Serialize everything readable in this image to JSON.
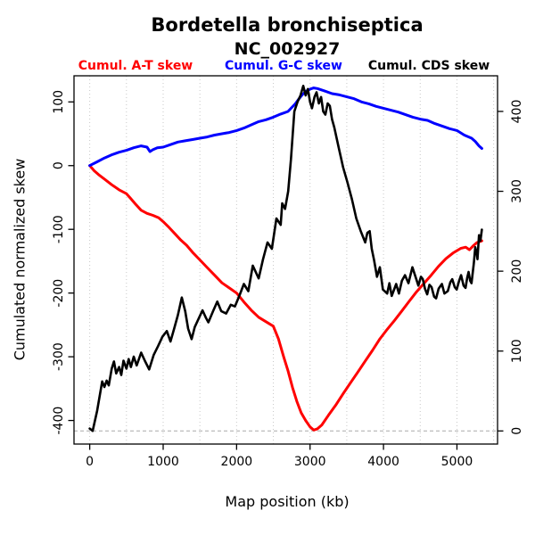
{
  "figure": {
    "title": "Bordetella bronchiseptica",
    "subtitle": "NC_002927",
    "background": "#ffffff",
    "axis_color": "#000000",
    "grid_color": "#c8c8c8",
    "refline_color": "#b4b4b4"
  },
  "legend": {
    "items": [
      {
        "label": "Cumul. A-T skew",
        "color": "#ff0000"
      },
      {
        "label": "Cumul. G-C skew",
        "color": "#0000ff"
      },
      {
        "label": "Cumul. CDS skew",
        "color": "#000000"
      }
    ]
  },
  "chart_data": {
    "type": "line",
    "title": "Bordetella bronchiseptica",
    "subtitle": "NC_002927",
    "xlabel": "Map position (kb)",
    "ylabel_left": "Cumulated normalized skew",
    "grid": true,
    "x_axis": {
      "domain": [
        -214,
        5553
      ],
      "ticks": [
        0,
        1000,
        2000,
        3000,
        4000,
        5000
      ],
      "gridlines": [
        0,
        500,
        1000,
        1500,
        2000,
        2500,
        3000,
        3500,
        4000,
        4500,
        5000,
        5500
      ],
      "grid_style": "dotted"
    },
    "y_left": {
      "domain": [
        -437,
        141
      ],
      "ticks": [
        -400,
        -300,
        -200,
        -100,
        0,
        100
      ]
    },
    "y_right": {
      "domain": [
        -16.4,
        444.6
      ],
      "ticks": [
        0,
        100,
        200,
        300,
        400
      ],
      "zero_refline": true,
      "refline_style": "dashed"
    },
    "series": [
      {
        "name": "Cumul. A-T skew",
        "axis": "left",
        "color": "#ff0000",
        "width": 3,
        "points": [
          [
            0,
            0
          ],
          [
            60,
            -8
          ],
          [
            120,
            -14
          ],
          [
            200,
            -21
          ],
          [
            300,
            -30
          ],
          [
            400,
            -38
          ],
          [
            500,
            -44
          ],
          [
            560,
            -52
          ],
          [
            620,
            -60
          ],
          [
            700,
            -70
          ],
          [
            780,
            -75
          ],
          [
            860,
            -78
          ],
          [
            940,
            -82
          ],
          [
            1000,
            -88
          ],
          [
            1080,
            -97
          ],
          [
            1160,
            -107
          ],
          [
            1240,
            -117
          ],
          [
            1320,
            -125
          ],
          [
            1400,
            -136
          ],
          [
            1500,
            -148
          ],
          [
            1600,
            -160
          ],
          [
            1700,
            -172
          ],
          [
            1800,
            -184
          ],
          [
            1900,
            -192
          ],
          [
            2000,
            -200
          ],
          [
            2100,
            -214
          ],
          [
            2200,
            -227
          ],
          [
            2300,
            -238
          ],
          [
            2400,
            -245
          ],
          [
            2500,
            -252
          ],
          [
            2570,
            -272
          ],
          [
            2640,
            -300
          ],
          [
            2700,
            -322
          ],
          [
            2760,
            -348
          ],
          [
            2820,
            -370
          ],
          [
            2880,
            -388
          ],
          [
            2940,
            -400
          ],
          [
            3000,
            -410
          ],
          [
            3050,
            -415
          ],
          [
            3100,
            -413
          ],
          [
            3160,
            -407
          ],
          [
            3250,
            -392
          ],
          [
            3350,
            -376
          ],
          [
            3450,
            -358
          ],
          [
            3550,
            -341
          ],
          [
            3650,
            -324
          ],
          [
            3750,
            -307
          ],
          [
            3850,
            -290
          ],
          [
            3950,
            -272
          ],
          [
            4050,
            -257
          ],
          [
            4150,
            -243
          ],
          [
            4250,
            -228
          ],
          [
            4350,
            -213
          ],
          [
            4450,
            -198
          ],
          [
            4550,
            -185
          ],
          [
            4650,
            -172
          ],
          [
            4750,
            -158
          ],
          [
            4850,
            -146
          ],
          [
            4950,
            -137
          ],
          [
            5050,
            -130
          ],
          [
            5120,
            -128
          ],
          [
            5170,
            -132
          ],
          [
            5220,
            -126
          ],
          [
            5270,
            -121
          ],
          [
            5339,
            -118
          ]
        ]
      },
      {
        "name": "Cumul. G-C skew",
        "axis": "left",
        "color": "#0000ff",
        "width": 3,
        "points": [
          [
            0,
            0
          ],
          [
            100,
            6
          ],
          [
            200,
            12
          ],
          [
            300,
            17
          ],
          [
            400,
            21
          ],
          [
            500,
            24
          ],
          [
            600,
            28
          ],
          [
            700,
            31
          ],
          [
            780,
            29
          ],
          [
            820,
            22
          ],
          [
            860,
            25
          ],
          [
            920,
            28
          ],
          [
            1000,
            29
          ],
          [
            1100,
            33
          ],
          [
            1200,
            37
          ],
          [
            1300,
            39
          ],
          [
            1400,
            41
          ],
          [
            1500,
            43
          ],
          [
            1600,
            45
          ],
          [
            1700,
            48
          ],
          [
            1800,
            50
          ],
          [
            1900,
            52
          ],
          [
            2000,
            55
          ],
          [
            2100,
            59
          ],
          [
            2200,
            64
          ],
          [
            2300,
            69
          ],
          [
            2400,
            72
          ],
          [
            2500,
            76
          ],
          [
            2600,
            81
          ],
          [
            2700,
            85
          ],
          [
            2800,
            97
          ],
          [
            2850,
            105
          ],
          [
            2900,
            112
          ],
          [
            2950,
            117
          ],
          [
            3000,
            120
          ],
          [
            3050,
            122
          ],
          [
            3100,
            121
          ],
          [
            3150,
            119
          ],
          [
            3200,
            117
          ],
          [
            3300,
            113
          ],
          [
            3400,
            111
          ],
          [
            3500,
            108
          ],
          [
            3600,
            105
          ],
          [
            3700,
            100
          ],
          [
            3800,
            97
          ],
          [
            3900,
            93
          ],
          [
            4000,
            90
          ],
          [
            4100,
            87
          ],
          [
            4200,
            84
          ],
          [
            4300,
            80
          ],
          [
            4400,
            76
          ],
          [
            4500,
            73
          ],
          [
            4600,
            71
          ],
          [
            4700,
            66
          ],
          [
            4800,
            62
          ],
          [
            4900,
            58
          ],
          [
            5000,
            55
          ],
          [
            5100,
            48
          ],
          [
            5200,
            43
          ],
          [
            5250,
            38
          ],
          [
            5300,
            31
          ],
          [
            5339,
            27
          ]
        ]
      },
      {
        "name": "Cumul. CDS skew",
        "axis": "right",
        "color": "#000000",
        "width": 2.6,
        "points": [
          [
            0,
            3
          ],
          [
            40,
            0
          ],
          [
            100,
            25
          ],
          [
            170,
            62
          ],
          [
            200,
            55
          ],
          [
            230,
            63
          ],
          [
            260,
            57
          ],
          [
            300,
            78
          ],
          [
            330,
            87
          ],
          [
            360,
            72
          ],
          [
            400,
            80
          ],
          [
            430,
            70
          ],
          [
            460,
            88
          ],
          [
            500,
            78
          ],
          [
            530,
            90
          ],
          [
            560,
            80
          ],
          [
            600,
            93
          ],
          [
            640,
            82
          ],
          [
            700,
            98
          ],
          [
            750,
            88
          ],
          [
            810,
            77
          ],
          [
            870,
            95
          ],
          [
            930,
            106
          ],
          [
            990,
            118
          ],
          [
            1050,
            125
          ],
          [
            1100,
            112
          ],
          [
            1150,
            128
          ],
          [
            1200,
            145
          ],
          [
            1254,
            167
          ],
          [
            1300,
            150
          ],
          [
            1340,
            128
          ],
          [
            1387,
            115
          ],
          [
            1430,
            130
          ],
          [
            1480,
            140
          ],
          [
            1536,
            151
          ],
          [
            1580,
            142
          ],
          [
            1616,
            136
          ],
          [
            1680,
            150
          ],
          [
            1737,
            162
          ],
          [
            1790,
            150
          ],
          [
            1857,
            147
          ],
          [
            1920,
            158
          ],
          [
            1978,
            156
          ],
          [
            2040,
            170
          ],
          [
            2099,
            184
          ],
          [
            2160,
            175
          ],
          [
            2220,
            207
          ],
          [
            2300,
            191
          ],
          [
            2360,
            215
          ],
          [
            2421,
            236
          ],
          [
            2480,
            228
          ],
          [
            2542,
            266
          ],
          [
            2600,
            258
          ],
          [
            2621,
            285
          ],
          [
            2660,
            278
          ],
          [
            2702,
            300
          ],
          [
            2740,
            340
          ],
          [
            2786,
            400
          ],
          [
            2830,
            412
          ],
          [
            2870,
            420
          ],
          [
            2907,
            432
          ],
          [
            2940,
            420
          ],
          [
            2970,
            428
          ],
          [
            3000,
            412
          ],
          [
            3027,
            404
          ],
          [
            3060,
            418
          ],
          [
            3088,
            424
          ],
          [
            3120,
            410
          ],
          [
            3150,
            418
          ],
          [
            3180,
            400
          ],
          [
            3208,
            396
          ],
          [
            3240,
            410
          ],
          [
            3269,
            407
          ],
          [
            3300,
            390
          ],
          [
            3330,
            380
          ],
          [
            3389,
            355
          ],
          [
            3450,
            330
          ],
          [
            3510,
            311
          ],
          [
            3570,
            290
          ],
          [
            3630,
            266
          ],
          [
            3690,
            250
          ],
          [
            3751,
            236
          ],
          [
            3780,
            248
          ],
          [
            3812,
            250
          ],
          [
            3840,
            228
          ],
          [
            3872,
            214
          ],
          [
            3911,
            193
          ],
          [
            3950,
            205
          ],
          [
            3992,
            177
          ],
          [
            4050,
            172
          ],
          [
            4080,
            185
          ],
          [
            4112,
            169
          ],
          [
            4173,
            184
          ],
          [
            4210,
            172
          ],
          [
            4250,
            188
          ],
          [
            4293,
            195
          ],
          [
            4340,
            185
          ],
          [
            4394,
            205
          ],
          [
            4440,
            192
          ],
          [
            4475,
            182
          ],
          [
            4510,
            193
          ],
          [
            4535,
            190
          ],
          [
            4565,
            178
          ],
          [
            4595,
            171
          ],
          [
            4625,
            183
          ],
          [
            4655,
            180
          ],
          [
            4690,
            168
          ],
          [
            4716,
            166
          ],
          [
            4750,
            178
          ],
          [
            4796,
            184
          ],
          [
            4830,
            172
          ],
          [
            4876,
            175
          ],
          [
            4910,
            186
          ],
          [
            4936,
            190
          ],
          [
            4970,
            180
          ],
          [
            4997,
            177
          ],
          [
            5030,
            188
          ],
          [
            5057,
            195
          ],
          [
            5090,
            182
          ],
          [
            5117,
            179
          ],
          [
            5140,
            192
          ],
          [
            5158,
            199
          ],
          [
            5180,
            188
          ],
          [
            5198,
            185
          ],
          [
            5230,
            210
          ],
          [
            5250,
            230
          ],
          [
            5270,
            222
          ],
          [
            5280,
            215
          ],
          [
            5300,
            245
          ],
          [
            5320,
            238
          ],
          [
            5339,
            252
          ]
        ]
      }
    ]
  }
}
